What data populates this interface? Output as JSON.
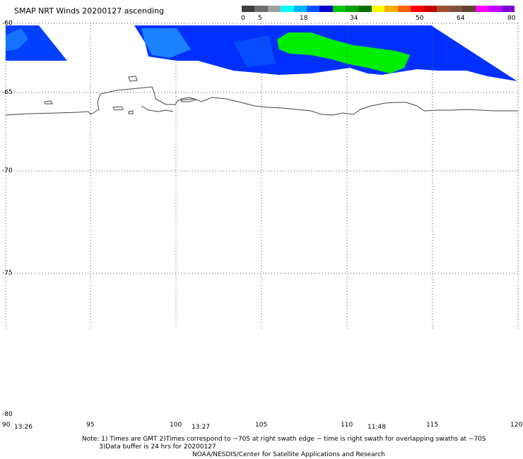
{
  "title": "SMAP NRT Winds 20200127 ascending",
  "colorbar": {
    "labels": [
      "0",
      "5",
      "18",
      "34",
      "50",
      "64",
      "80"
    ],
    "colors": [
      "#404040",
      "#707070",
      "#a0a0a0",
      "#00ffff",
      "#00b4ff",
      "#0050ff",
      "#0000d0",
      "#00c800",
      "#00a000",
      "#007000",
      "#ffff00",
      "#ffb000",
      "#ff6000",
      "#ff0000",
      "#c80000",
      "#a05030",
      "#805040",
      "#604030",
      "#ff00ff",
      "#c000ff",
      "#8000d0"
    ]
  },
  "map": {
    "lat_labels": [
      "-60",
      "-65",
      "-70",
      "-75",
      "-80"
    ],
    "lon_labels": [
      "90",
      "95",
      "100",
      "105",
      "110",
      "115",
      "120"
    ],
    "time_labels": [
      "13:26",
      "13:27",
      "11:48"
    ],
    "colors": {
      "swath_blue": "#0030ff",
      "swath_light": "#1e90ff",
      "swath_green": "#00ee00",
      "coast": "#444444",
      "grid": "#555555"
    }
  },
  "notes": {
    "line1": "Note: 1) Times are GMT 2)Times correspond to ~70S at right swath edge ~ time is right swath for overlapping swaths at ~70S",
    "line2": "3)Data buffer is 24 hrs for 20200127",
    "line3": "NOAA/NESDIS/Center for Satellite Applications and Research"
  }
}
